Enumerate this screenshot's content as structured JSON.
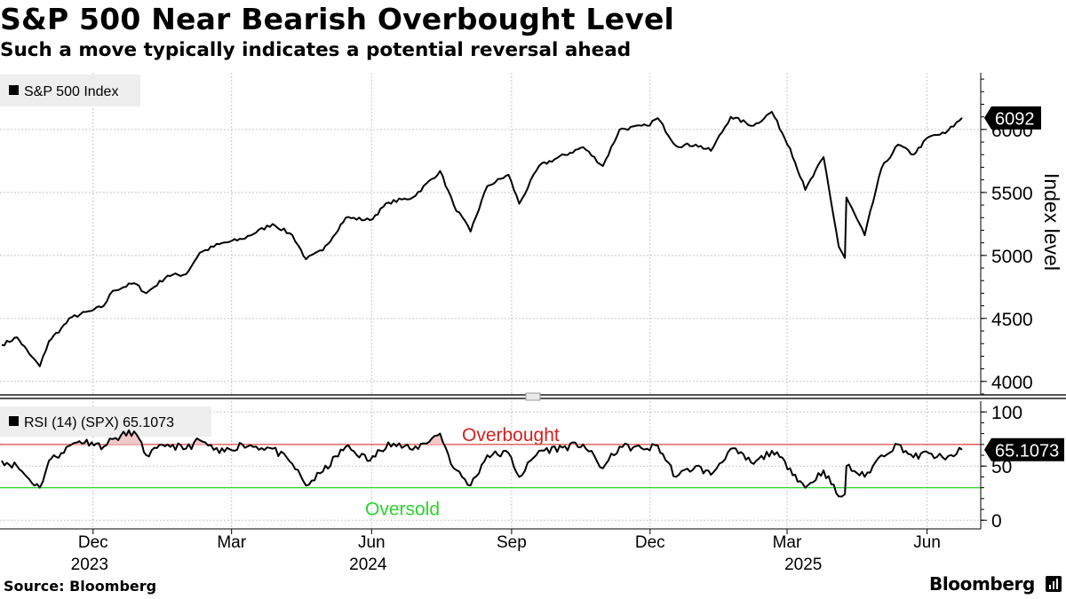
{
  "header": {
    "title": "S&P 500 Near Bearish Overbought Level",
    "subtitle": "Such a move typically indicates a potential reversal ahead"
  },
  "footer": {
    "source": "Source: Bloomberg",
    "brand": "Bloomberg"
  },
  "colors": {
    "line": "#000000",
    "grid": "#c8c8c8",
    "overbought": "#d42020",
    "oversold": "#2dd42d",
    "legend_bg": "#eeeeee",
    "callout_bg": "#000000",
    "rsi_fill_above": "#f3c8c8"
  },
  "chart_data": [
    {
      "type": "line",
      "title": "S&P 500 Index",
      "legend": [
        "S&P 500 Index"
      ],
      "ylabel": "Index level",
      "ylim": [
        3900,
        6450
      ],
      "yticks": [
        4000,
        4500,
        5000,
        5500,
        6000
      ],
      "last_value_label": "6092",
      "series": [
        {
          "name": "S&P 500 Index",
          "points": [
            [
              "2023-10-02",
              4290
            ],
            [
              "2023-10-12",
              4350
            ],
            [
              "2023-10-20",
              4220
            ],
            [
              "2023-10-27",
              4120
            ],
            [
              "2023-11-02",
              4320
            ],
            [
              "2023-11-10",
              4420
            ],
            [
              "2023-11-17",
              4510
            ],
            [
              "2023-11-30",
              4560
            ],
            [
              "2023-12-08",
              4600
            ],
            [
              "2023-12-14",
              4720
            ],
            [
              "2023-12-28",
              4780
            ],
            [
              "2024-01-05",
              4700
            ],
            [
              "2024-01-19",
              4840
            ],
            [
              "2024-01-31",
              4850
            ],
            [
              "2024-02-09",
              5020
            ],
            [
              "2024-02-22",
              5090
            ],
            [
              "2024-03-08",
              5130
            ],
            [
              "2024-03-28",
              5250
            ],
            [
              "2024-04-10",
              5160
            ],
            [
              "2024-04-19",
              4970
            ],
            [
              "2024-04-30",
              5040
            ],
            [
              "2024-05-15",
              5300
            ],
            [
              "2024-05-31",
              5280
            ],
            [
              "2024-06-12",
              5420
            ],
            [
              "2024-06-28",
              5460
            ],
            [
              "2024-07-16",
              5670
            ],
            [
              "2024-07-25",
              5400
            ],
            [
              "2024-08-05",
              5190
            ],
            [
              "2024-08-16",
              5550
            ],
            [
              "2024-08-30",
              5640
            ],
            [
              "2024-09-06",
              5410
            ],
            [
              "2024-09-19",
              5710
            ],
            [
              "2024-10-18",
              5860
            ],
            [
              "2024-10-31",
              5710
            ],
            [
              "2024-11-11",
              6000
            ],
            [
              "2024-11-29",
              6030
            ],
            [
              "2024-12-06",
              6090
            ],
            [
              "2024-12-18",
              5870
            ],
            [
              "2024-12-31",
              5880
            ],
            [
              "2025-01-10",
              5830
            ],
            [
              "2025-01-23",
              6100
            ],
            [
              "2025-02-07",
              6030
            ],
            [
              "2025-02-19",
              6140
            ],
            [
              "2025-03-03",
              5850
            ],
            [
              "2025-03-13",
              5520
            ],
            [
              "2025-03-25",
              5780
            ],
            [
              "2025-04-04",
              5070
            ],
            [
              "2025-04-08",
              4980
            ],
            [
              "2025-04-09",
              5460
            ],
            [
              "2025-04-21",
              5160
            ],
            [
              "2025-05-02",
              5690
            ],
            [
              "2025-05-13",
              5880
            ],
            [
              "2025-05-23",
              5800
            ],
            [
              "2025-06-02",
              5940
            ],
            [
              "2025-06-13",
              5970
            ],
            [
              "2025-06-24",
              6092
            ]
          ]
        }
      ],
      "xticks": [
        {
          "date": "2023-12-01",
          "label": "Dec"
        },
        {
          "date": "2024-03-01",
          "label": "Mar"
        },
        {
          "date": "2024-06-01",
          "label": "Jun"
        },
        {
          "date": "2024-09-01",
          "label": "Sep"
        },
        {
          "date": "2024-12-01",
          "label": "Dec"
        },
        {
          "date": "2025-03-01",
          "label": "Mar"
        },
        {
          "date": "2025-06-01",
          "label": "Jun"
        }
      ],
      "year_labels": [
        {
          "date": "2023-12-01",
          "label": "2023"
        },
        {
          "date": "2024-06-01",
          "label": "2024"
        },
        {
          "date": "2025-03-14",
          "label": "2025"
        }
      ]
    },
    {
      "type": "line",
      "title": "RSI (14) (SPX)",
      "legend": [
        "RSI (14) (SPX) 65.1073"
      ],
      "ylim": [
        -8,
        110
      ],
      "yticks": [
        0,
        50,
        100
      ],
      "last_value_label": "65.1073",
      "reference_lines": [
        {
          "name": "Overbought",
          "value": 70
        },
        {
          "name": "Oversold",
          "value": 30
        }
      ],
      "series": [
        {
          "name": "RSI (14) (SPX)",
          "points": [
            [
              "2023-10-02",
              55
            ],
            [
              "2023-10-12",
              50
            ],
            [
              "2023-10-20",
              38
            ],
            [
              "2023-10-27",
              30
            ],
            [
              "2023-11-02",
              55
            ],
            [
              "2023-11-10",
              62
            ],
            [
              "2023-11-17",
              70
            ],
            [
              "2023-11-22",
              73
            ],
            [
              "2023-11-30",
              72
            ],
            [
              "2023-12-08",
              68
            ],
            [
              "2023-12-14",
              75
            ],
            [
              "2023-12-28",
              82
            ],
            [
              "2024-01-05",
              60
            ],
            [
              "2024-01-19",
              70
            ],
            [
              "2024-01-31",
              66
            ],
            [
              "2024-02-09",
              74
            ],
            [
              "2024-02-22",
              62
            ],
            [
              "2024-03-08",
              70
            ],
            [
              "2024-03-28",
              66
            ],
            [
              "2024-04-10",
              52
            ],
            [
              "2024-04-19",
              32
            ],
            [
              "2024-04-30",
              45
            ],
            [
              "2024-05-15",
              68
            ],
            [
              "2024-05-31",
              55
            ],
            [
              "2024-06-12",
              72
            ],
            [
              "2024-06-28",
              65
            ],
            [
              "2024-07-16",
              80
            ],
            [
              "2024-07-25",
              48
            ],
            [
              "2024-08-05",
              32
            ],
            [
              "2024-08-16",
              60
            ],
            [
              "2024-08-30",
              62
            ],
            [
              "2024-09-06",
              40
            ],
            [
              "2024-09-19",
              64
            ],
            [
              "2024-10-18",
              70
            ],
            [
              "2024-10-31",
              48
            ],
            [
              "2024-11-11",
              68
            ],
            [
              "2024-11-29",
              66
            ],
            [
              "2024-12-06",
              69
            ],
            [
              "2024-12-18",
              40
            ],
            [
              "2024-12-31",
              50
            ],
            [
              "2025-01-10",
              42
            ],
            [
              "2025-01-23",
              66
            ],
            [
              "2025-02-07",
              52
            ],
            [
              "2025-02-19",
              64
            ],
            [
              "2025-03-03",
              48
            ],
            [
              "2025-03-13",
              30
            ],
            [
              "2025-03-25",
              46
            ],
            [
              "2025-04-04",
              22
            ],
            [
              "2025-04-08",
              24
            ],
            [
              "2025-04-09",
              50
            ],
            [
              "2025-04-21",
              40
            ],
            [
              "2025-05-02",
              60
            ],
            [
              "2025-05-13",
              70
            ],
            [
              "2025-05-23",
              58
            ],
            [
              "2025-06-02",
              62
            ],
            [
              "2025-06-13",
              56
            ],
            [
              "2025-06-24",
              65.1073
            ]
          ]
        }
      ]
    }
  ]
}
